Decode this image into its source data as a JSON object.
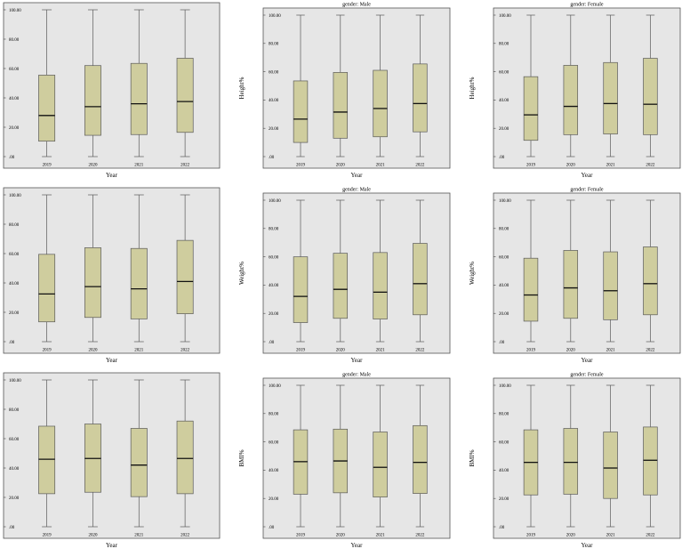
{
  "colors": {
    "plot_background": "#e6e6e6",
    "box_fill": "#cfcd9e",
    "box_stroke": "#5a5a5a",
    "median": "#111111",
    "whisker": "#5a5a5a"
  },
  "chart_data": [
    {
      "type": "box",
      "title": "",
      "xlabel": "Year",
      "ylabel": "",
      "categories": [
        "2019",
        "2020",
        "2021",
        "2022"
      ],
      "ylim": [
        0,
        100
      ],
      "ytick_labels": [
        ".00",
        "20.00",
        "40.00",
        "60.00",
        "80.00",
        "100.00"
      ],
      "grid": false,
      "boxes": [
        {
          "min": 0,
          "q1": 10.5,
          "median": 28,
          "q3": 55.5,
          "max": 100
        },
        {
          "min": 0,
          "q1": 14.5,
          "median": 34,
          "q3": 62,
          "max": 100
        },
        {
          "min": 0,
          "q1": 15,
          "median": 36,
          "q3": 63.5,
          "max": 100
        },
        {
          "min": 0,
          "q1": 16.5,
          "median": 37.5,
          "q3": 67,
          "max": 100
        }
      ]
    },
    {
      "type": "box",
      "title": "gender: Male",
      "xlabel": "Year",
      "ylabel": "Height%",
      "categories": [
        "2019",
        "2020",
        "2021",
        "2022"
      ],
      "ylim": [
        0,
        100
      ],
      "ytick_labels": [
        ".00",
        "20.00",
        "40.00",
        "60.00",
        "80.00",
        "100.00"
      ],
      "grid": false,
      "boxes": [
        {
          "min": 0,
          "q1": 10,
          "median": 26.5,
          "q3": 53.5,
          "max": 100
        },
        {
          "min": 0,
          "q1": 13,
          "median": 31.5,
          "q3": 59.5,
          "max": 100
        },
        {
          "min": 0,
          "q1": 14,
          "median": 34,
          "q3": 61,
          "max": 100
        },
        {
          "min": 0,
          "q1": 17.5,
          "median": 37.5,
          "q3": 65.5,
          "max": 100
        }
      ]
    },
    {
      "type": "box",
      "title": "gender: Female",
      "xlabel": "Year",
      "ylabel": "Height%",
      "categories": [
        "2019",
        "2020",
        "2021",
        "2022"
      ],
      "ylim": [
        0,
        100
      ],
      "ytick_labels": [
        ".00",
        "20.00",
        "40.00",
        "60.00",
        "80.00",
        "100.00"
      ],
      "grid": false,
      "boxes": [
        {
          "min": 0,
          "q1": 11.5,
          "median": 29.5,
          "q3": 56.5,
          "max": 100
        },
        {
          "min": 0,
          "q1": 15.5,
          "median": 35.5,
          "q3": 64.5,
          "max": 100
        },
        {
          "min": 0,
          "q1": 16,
          "median": 37.5,
          "q3": 66.5,
          "max": 100
        },
        {
          "min": 0,
          "q1": 15.5,
          "median": 37,
          "q3": 69.5,
          "max": 100
        }
      ]
    },
    {
      "type": "box",
      "title": "",
      "xlabel": "Year",
      "ylabel": "",
      "categories": [
        "2019",
        "2020",
        "2021",
        "2022"
      ],
      "ylim": [
        0,
        100
      ],
      "ytick_labels": [
        ".00",
        "20.00",
        "40.00",
        "60.00",
        "80.00",
        "100.00"
      ],
      "grid": false,
      "boxes": [
        {
          "min": 0,
          "q1": 13.5,
          "median": 32.5,
          "q3": 59.5,
          "max": 100
        },
        {
          "min": 0,
          "q1": 16.5,
          "median": 37.5,
          "q3": 64,
          "max": 100
        },
        {
          "min": 0,
          "q1": 15.5,
          "median": 36,
          "q3": 63.5,
          "max": 100
        },
        {
          "min": 0,
          "q1": 19,
          "median": 41,
          "q3": 69,
          "max": 100
        }
      ]
    },
    {
      "type": "box",
      "title": "gender: Male",
      "xlabel": "Year",
      "ylabel": "Weight%",
      "categories": [
        "2019",
        "2020",
        "2021",
        "2022"
      ],
      "ylim": [
        0,
        100
      ],
      "ytick_labels": [
        ".00",
        "20.00",
        "40.00",
        "60.00",
        "80.00",
        "100.00"
      ],
      "grid": false,
      "boxes": [
        {
          "min": 0,
          "q1": 13.5,
          "median": 32,
          "q3": 60,
          "max": 100
        },
        {
          "min": 0,
          "q1": 16.5,
          "median": 37,
          "q3": 62.5,
          "max": 100
        },
        {
          "min": 0,
          "q1": 16,
          "median": 35,
          "q3": 63,
          "max": 100
        },
        {
          "min": 0,
          "q1": 19,
          "median": 41,
          "q3": 69.5,
          "max": 100
        }
      ]
    },
    {
      "type": "box",
      "title": "gender: Female",
      "xlabel": "Year",
      "ylabel": "Weight%",
      "categories": [
        "2019",
        "2020",
        "2021",
        "2022"
      ],
      "ylim": [
        0,
        100
      ],
      "ytick_labels": [
        ".00",
        "20.00",
        "40.00",
        "60.00",
        "80.00",
        "100.00"
      ],
      "grid": false,
      "boxes": [
        {
          "min": 0,
          "q1": 14.5,
          "median": 33,
          "q3": 59,
          "max": 100
        },
        {
          "min": 0,
          "q1": 16.5,
          "median": 38,
          "q3": 64.5,
          "max": 100
        },
        {
          "min": 0,
          "q1": 15.5,
          "median": 36,
          "q3": 63.5,
          "max": 100
        },
        {
          "min": 0,
          "q1": 19,
          "median": 41,
          "q3": 67,
          "max": 100
        }
      ]
    },
    {
      "type": "box",
      "title": "",
      "xlabel": "Year",
      "ylabel": "",
      "categories": [
        "2019",
        "2020",
        "2021",
        "2022"
      ],
      "ylim": [
        0,
        100
      ],
      "ytick_labels": [
        ".00",
        "20.00",
        "40.00",
        "60.00",
        "80.00",
        "100.00"
      ],
      "grid": false,
      "boxes": [
        {
          "min": 0,
          "q1": 22.5,
          "median": 46,
          "q3": 68.5,
          "max": 100
        },
        {
          "min": 0,
          "q1": 23.5,
          "median": 46.5,
          "q3": 70,
          "max": 100
        },
        {
          "min": 0,
          "q1": 20.5,
          "median": 42,
          "q3": 67,
          "max": 100
        },
        {
          "min": 0,
          "q1": 22.5,
          "median": 46.5,
          "q3": 72,
          "max": 100
        }
      ]
    },
    {
      "type": "box",
      "title": "gender: Male",
      "xlabel": "Year",
      "ylabel": "BMI%",
      "categories": [
        "2019",
        "2020",
        "2021",
        "2022"
      ],
      "ylim": [
        0,
        100
      ],
      "ytick_labels": [
        ".00",
        "20.00",
        "40.00",
        "60.00",
        "80.00",
        "100.00"
      ],
      "grid": false,
      "boxes": [
        {
          "min": 0,
          "q1": 23,
          "median": 46,
          "q3": 68.5,
          "max": 100
        },
        {
          "min": 0,
          "q1": 24,
          "median": 46.5,
          "q3": 69,
          "max": 100
        },
        {
          "min": 0,
          "q1": 21,
          "median": 42,
          "q3": 67,
          "max": 100
        },
        {
          "min": 0,
          "q1": 23.5,
          "median": 45.5,
          "q3": 71.5,
          "max": 100
        }
      ]
    },
    {
      "type": "box",
      "title": "gender: Female",
      "xlabel": "Year",
      "ylabel": "BMI%",
      "categories": [
        "2019",
        "2020",
        "2021",
        "2022"
      ],
      "ylim": [
        0,
        100
      ],
      "ytick_labels": [
        ".00",
        "20.00",
        "40.00",
        "60.00",
        "80.00",
        "100.00"
      ],
      "grid": false,
      "boxes": [
        {
          "min": 0,
          "q1": 22.5,
          "median": 45.5,
          "q3": 68.5,
          "max": 100
        },
        {
          "min": 0,
          "q1": 23,
          "median": 45.5,
          "q3": 69.5,
          "max": 100
        },
        {
          "min": 0,
          "q1": 20,
          "median": 41.5,
          "q3": 67,
          "max": 100
        },
        {
          "min": 0,
          "q1": 22.5,
          "median": 47,
          "q3": 70.5,
          "max": 100
        }
      ]
    }
  ]
}
